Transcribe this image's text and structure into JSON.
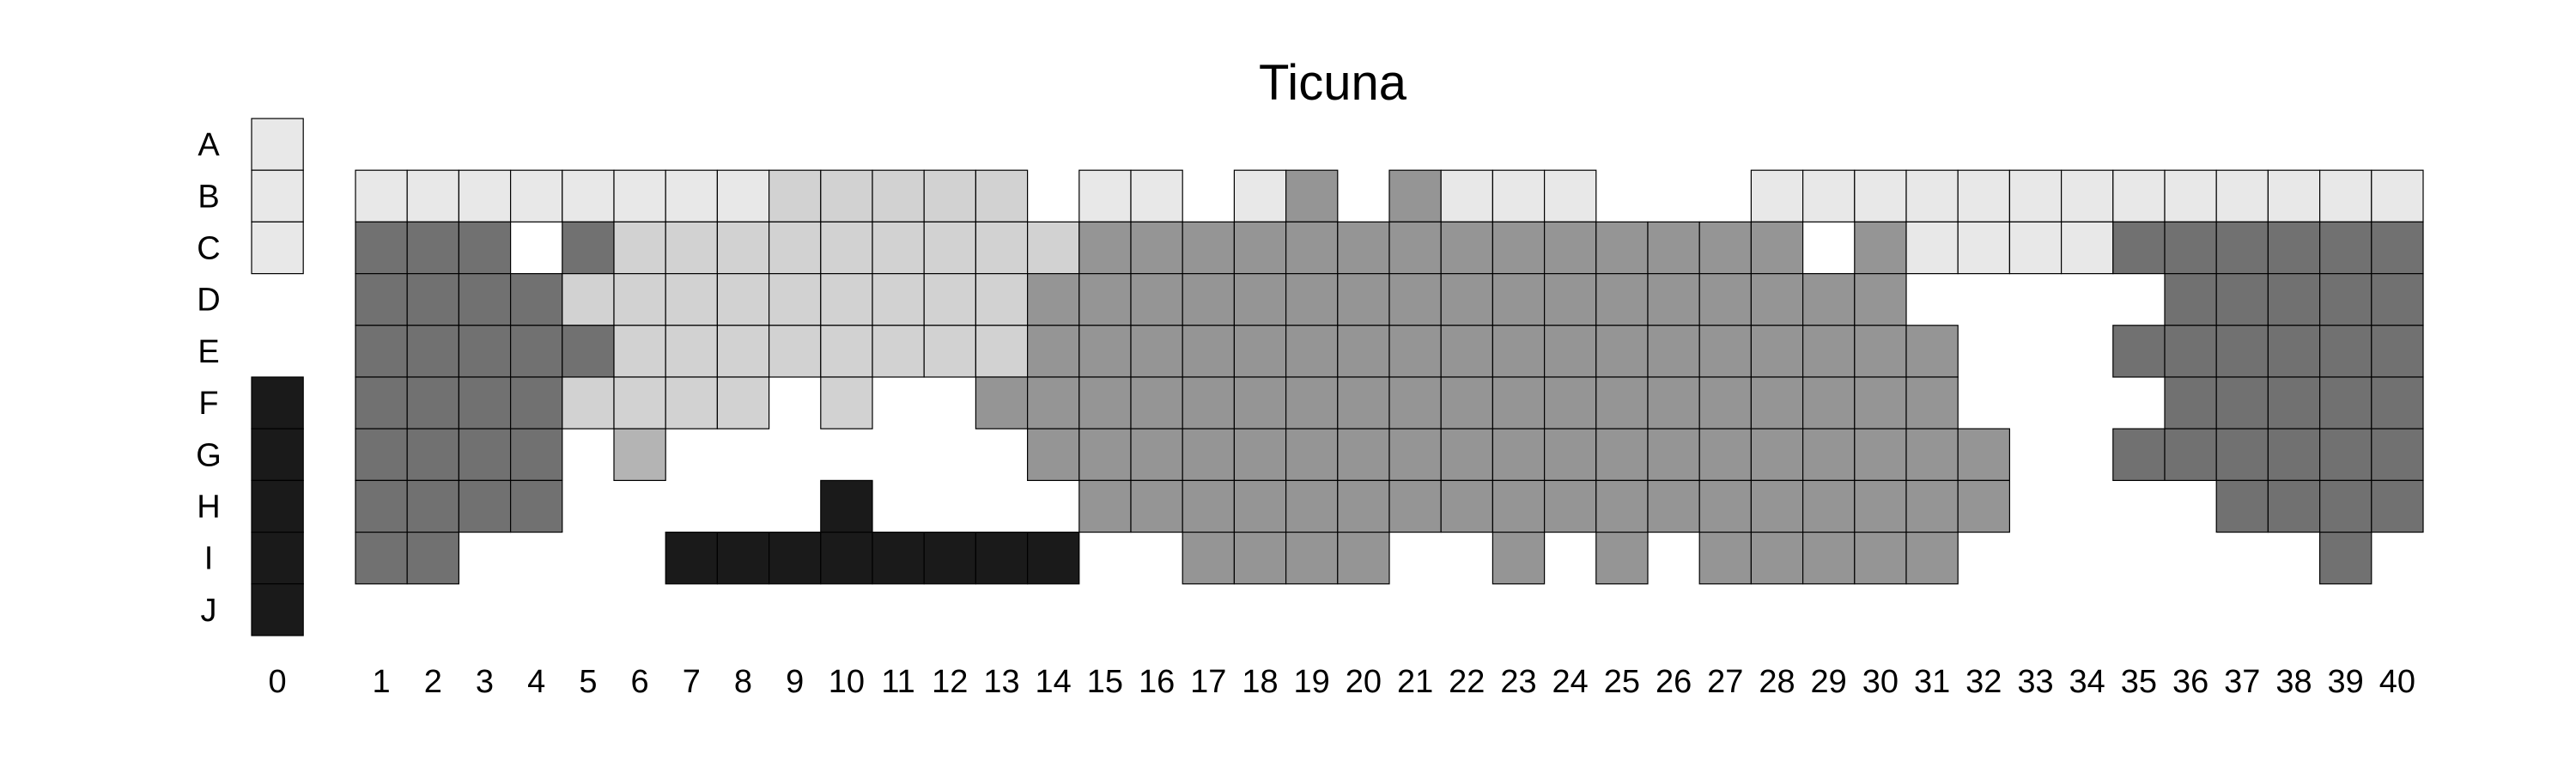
{
  "chart_data": {
    "type": "heatmap",
    "title": "Ticuna",
    "xlabel": "",
    "ylabel": "",
    "rows": [
      "A",
      "B",
      "C",
      "D",
      "E",
      "F",
      "G",
      "H",
      "I",
      "J"
    ],
    "columns": [
      "0",
      "1",
      "2",
      "3",
      "4",
      "5",
      "6",
      "7",
      "8",
      "9",
      "10",
      "11",
      "12",
      "13",
      "14",
      "15",
      "16",
      "17",
      "18",
      "19",
      "20",
      "21",
      "22",
      "23",
      "24",
      "25",
      "26",
      "27",
      "28",
      "29",
      "30",
      "31",
      "32",
      "33",
      "34",
      "35",
      "36",
      "37",
      "38",
      "39",
      "40"
    ],
    "legend": "none",
    "grid": false,
    "colors": {
      "1": "#e8e8e8",
      "2": "#d2d2d2",
      "3": "#b4b4b4",
      "4": "#959595",
      "5": "#717171",
      "6": "#1a1a1a"
    },
    "values": [
      [
        1,
        0,
        0,
        0,
        0,
        0,
        0,
        0,
        0,
        0,
        0,
        0,
        0,
        0,
        0,
        0,
        0,
        0,
        0,
        0,
        0,
        0,
        0,
        0,
        0,
        0,
        0,
        0,
        0,
        0,
        0,
        0,
        0,
        0,
        0,
        0,
        0,
        0,
        0,
        0,
        0
      ],
      [
        1,
        1,
        1,
        1,
        1,
        1,
        1,
        1,
        1,
        2,
        2,
        2,
        2,
        2,
        0,
        1,
        1,
        0,
        1,
        4,
        0,
        4,
        1,
        1,
        1,
        0,
        0,
        0,
        1,
        1,
        1,
        1,
        1,
        1,
        1,
        1,
        1,
        1,
        1,
        1,
        1
      ],
      [
        1,
        5,
        5,
        5,
        0,
        5,
        2,
        2,
        2,
        2,
        2,
        2,
        2,
        2,
        2,
        4,
        4,
        4,
        4,
        4,
        4,
        4,
        4,
        4,
        4,
        4,
        4,
        4,
        4,
        0,
        4,
        1,
        1,
        1,
        1,
        5,
        5,
        5,
        5,
        5,
        5
      ],
      [
        0,
        5,
        5,
        5,
        5,
        2,
        2,
        2,
        2,
        2,
        2,
        2,
        2,
        2,
        4,
        4,
        4,
        4,
        4,
        4,
        4,
        4,
        4,
        4,
        4,
        4,
        4,
        4,
        4,
        4,
        4,
        0,
        0,
        0,
        0,
        0,
        5,
        5,
        5,
        5,
        5
      ],
      [
        0,
        5,
        5,
        5,
        5,
        5,
        2,
        2,
        2,
        2,
        2,
        2,
        2,
        2,
        4,
        4,
        4,
        4,
        4,
        4,
        4,
        4,
        4,
        4,
        4,
        4,
        4,
        4,
        4,
        4,
        4,
        4,
        0,
        0,
        0,
        5,
        5,
        5,
        5,
        5,
        5
      ],
      [
        6,
        5,
        5,
        5,
        5,
        2,
        2,
        2,
        2,
        0,
        2,
        0,
        0,
        4,
        4,
        4,
        4,
        4,
        4,
        4,
        4,
        4,
        4,
        4,
        4,
        4,
        4,
        4,
        4,
        4,
        4,
        4,
        0,
        0,
        0,
        0,
        5,
        5,
        5,
        5,
        5
      ],
      [
        6,
        5,
        5,
        5,
        5,
        0,
        3,
        0,
        0,
        0,
        0,
        0,
        0,
        0,
        4,
        4,
        4,
        4,
        4,
        4,
        4,
        4,
        4,
        4,
        4,
        4,
        4,
        4,
        4,
        4,
        4,
        4,
        4,
        0,
        0,
        5,
        5,
        5,
        5,
        5,
        5
      ],
      [
        6,
        5,
        5,
        5,
        5,
        0,
        0,
        0,
        0,
        0,
        6,
        0,
        0,
        0,
        0,
        4,
        4,
        4,
        4,
        4,
        4,
        4,
        4,
        4,
        4,
        4,
        4,
        4,
        4,
        4,
        4,
        4,
        4,
        0,
        0,
        0,
        0,
        5,
        5,
        5,
        5
      ],
      [
        6,
        5,
        5,
        0,
        0,
        0,
        0,
        6,
        6,
        6,
        6,
        6,
        6,
        6,
        6,
        0,
        0,
        4,
        4,
        4,
        4,
        0,
        0,
        4,
        0,
        4,
        0,
        4,
        4,
        4,
        4,
        4,
        0,
        0,
        0,
        0,
        0,
        0,
        0,
        5,
        0
      ],
      [
        6,
        0,
        0,
        0,
        0,
        0,
        0,
        0,
        0,
        0,
        0,
        0,
        0,
        0,
        0,
        0,
        0,
        0,
        0,
        0,
        0,
        0,
        0,
        0,
        0,
        0,
        0,
        0,
        0,
        0,
        0,
        0,
        0,
        0,
        0,
        0,
        0,
        0,
        0,
        0,
        0
      ]
    ]
  }
}
